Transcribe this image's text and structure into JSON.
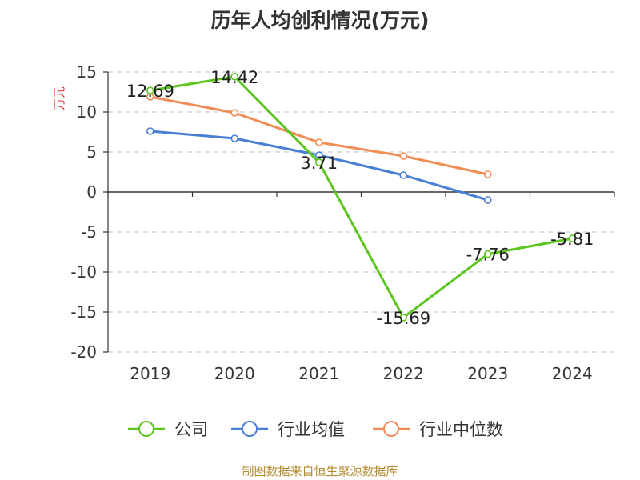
{
  "title": "历年人均创利情况(万元)",
  "footer": "制图数据来自恒生聚源数据库",
  "chart_data": {
    "type": "line",
    "title": "历年人均创利情况(万元)",
    "ylabel": "万元",
    "xlabel": "",
    "categories": [
      "2019",
      "2020",
      "2021",
      "2022",
      "2023",
      "2024"
    ],
    "ylim": [
      -20,
      15
    ],
    "yticks": [
      15,
      10,
      5,
      0,
      -5,
      -10,
      -15,
      -20
    ],
    "grid": true,
    "legend_position": "bottom",
    "series": [
      {
        "name": "公司",
        "color": "#5cc51f",
        "values": [
          12.69,
          14.42,
          3.71,
          -15.69,
          -7.76,
          -5.81
        ],
        "labels": [
          "12.69",
          "14.42",
          "3.71",
          "-15.69",
          "-7.76",
          "-5.81"
        ]
      },
      {
        "name": "行业均值",
        "color": "#4a7fd6",
        "values": [
          7.6,
          6.7,
          4.6,
          2.1,
          -1.0,
          null
        ]
      },
      {
        "name": "行业中位数",
        "color": "#f28c55",
        "values": [
          11.9,
          9.9,
          6.2,
          4.5,
          2.2,
          null
        ]
      }
    ]
  }
}
